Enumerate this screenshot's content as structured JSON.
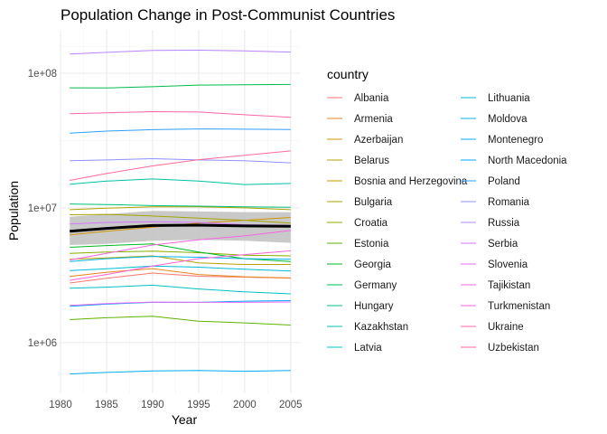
{
  "chart_data": {
    "type": "line",
    "title": "Population Change in Post-Communist Countries",
    "xlabel": "Year",
    "ylabel": "Population",
    "xlim": [
      1980,
      2006
    ],
    "xticks": [
      1980,
      1985,
      1990,
      1995,
      2000,
      2005
    ],
    "yscale": "log",
    "ylim": [
      420000,
      210000000
    ],
    "yticks": [
      1000000,
      10000000,
      100000000
    ],
    "ytick_labels": [
      "1e+06",
      "1e+07",
      "1e+08"
    ],
    "grid": true,
    "legend_title": "country",
    "legend_position": "right",
    "x": [
      1981,
      1985,
      1990,
      1995,
      2000,
      2005
    ],
    "series": [
      {
        "name": "Albania",
        "color": "#F8766D",
        "values": [
          2770000,
          3000000,
          3280000,
          3110000,
          3060000,
          3010000
        ]
      },
      {
        "name": "Armenia",
        "color": "#E7851E",
        "values": [
          3100000,
          3330000,
          3540000,
          3200000,
          3080000,
          3020000
        ]
      },
      {
        "name": "Azerbaijan",
        "color": "#D09400",
        "values": [
          6300000,
          6700000,
          7200000,
          7700000,
          8100000,
          8500000
        ]
      },
      {
        "name": "Belarus",
        "color": "#B2A100",
        "values": [
          9700000,
          9950000,
          10200000,
          10190000,
          10000000,
          9700000
        ]
      },
      {
        "name": "Bosnia and Herzegovina",
        "color": "#B8A000",
        "values": [
          4150000,
          4250000,
          4400000,
          3900000,
          3800000,
          3800000
        ]
      },
      {
        "name": "Bulgaria",
        "color": "#A3A500",
        "values": [
          8900000,
          8950000,
          8700000,
          8400000,
          8100000,
          7700000
        ]
      },
      {
        "name": "Croatia",
        "color": "#85AD00",
        "values": [
          4600000,
          4700000,
          4780000,
          4650000,
          4450000,
          4400000
        ]
      },
      {
        "name": "Estonia",
        "color": "#5EB300",
        "values": [
          1480000,
          1530000,
          1570000,
          1440000,
          1400000,
          1350000
        ]
      },
      {
        "name": "Georgia",
        "color": "#00B81F",
        "values": [
          5100000,
          5250000,
          5400000,
          4700000,
          4200000,
          4000000
        ]
      },
      {
        "name": "Germany",
        "color": "#00BB4E",
        "values": [
          78000000,
          77800000,
          79400000,
          81700000,
          82200000,
          82500000
        ]
      },
      {
        "name": "Hungary",
        "color": "#00BF7D",
        "values": [
          10700000,
          10600000,
          10400000,
          10300000,
          10200000,
          10100000
        ]
      },
      {
        "name": "Kazakhstan",
        "color": "#00C1A3",
        "values": [
          15000000,
          15800000,
          16400000,
          15800000,
          14900000,
          15200000
        ]
      },
      {
        "name": "Latvia",
        "color": "#00C0C6",
        "values": [
          2530000,
          2580000,
          2670000,
          2500000,
          2380000,
          2300000
        ]
      },
      {
        "name": "Lithuania",
        "color": "#00BCD8",
        "values": [
          3420000,
          3530000,
          3700000,
          3630000,
          3500000,
          3400000
        ]
      },
      {
        "name": "Moldova",
        "color": "#00B6EB",
        "values": [
          4000000,
          4200000,
          4360000,
          4300000,
          4200000,
          4150000
        ]
      },
      {
        "name": "Montenegro",
        "color": "#00ADFA",
        "values": [
          585000,
          600000,
          615000,
          620000,
          612000,
          620000
        ]
      },
      {
        "name": "North Macedonia",
        "color": "#00A5FF",
        "values": [
          1860000,
          1930000,
          1990000,
          1990000,
          2030000,
          2050000
        ]
      },
      {
        "name": "Poland",
        "color": "#2E9FFF",
        "values": [
          35900000,
          37200000,
          38100000,
          38600000,
          38400000,
          38200000
        ]
      },
      {
        "name": "Romania",
        "color": "#8F91FF",
        "values": [
          22400000,
          22700000,
          23200000,
          22700000,
          22400000,
          21600000
        ]
      },
      {
        "name": "Russia",
        "color": "#B983FF",
        "values": [
          139000000,
          143000000,
          147900000,
          148400000,
          146600000,
          143500000
        ]
      },
      {
        "name": "Serbia",
        "color": "#D575FE",
        "values": [
          7600000,
          7800000,
          7900000,
          7800000,
          7500000,
          7400000
        ]
      },
      {
        "name": "Slovenia",
        "color": "#E76BF3",
        "values": [
          1890000,
          1950000,
          1998000,
          1990000,
          1990000,
          2000000
        ]
      },
      {
        "name": "Tajikistan",
        "color": "#F564E3",
        "values": [
          4100000,
          4600000,
          5300000,
          5800000,
          6200000,
          6800000
        ]
      },
      {
        "name": "Turkmenistan",
        "color": "#FB61D7",
        "values": [
          2900000,
          3200000,
          3700000,
          4200000,
          4500000,
          4800000
        ]
      },
      {
        "name": "Ukraine",
        "color": "#FF65AC",
        "values": [
          50100000,
          50900000,
          51800000,
          51500000,
          49200000,
          47100000
        ]
      },
      {
        "name": "Uzbekistan",
        "color": "#FF6A98",
        "values": [
          16000000,
          18000000,
          20500000,
          22800000,
          24600000,
          26500000
        ]
      }
    ],
    "trend": {
      "x": [
        1981,
        1985,
        1990,
        1995,
        2000,
        2005
      ],
      "values": [
        6700000,
        7050000,
        7400000,
        7450000,
        7350000,
        7300000
      ],
      "band_low": [
        5300000,
        5400000,
        5700000,
        5800000,
        5700000,
        5500000
      ],
      "band_high": [
        8600000,
        9000000,
        9500000,
        9400000,
        9300000,
        9300000
      ],
      "line_color": "#000000",
      "band_color": "#BFBFBF"
    }
  }
}
